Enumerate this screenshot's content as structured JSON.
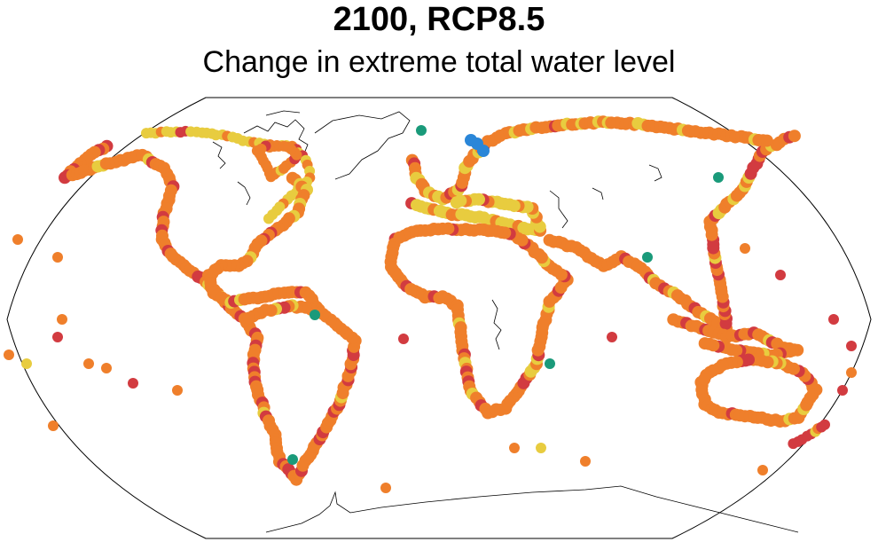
{
  "title": "2100, RCP8.5",
  "subtitle": "Change in extreme total water level",
  "map": {
    "projection": "robinson",
    "point_colors": {
      "yellow": "#e8cc3f",
      "orange": "#ef7f2b",
      "red": "#d23b40",
      "green": "#1a9a7a",
      "blue": "#2a86d8"
    },
    "coastline_color": "#000000",
    "ice_outline_color": "#000000"
  }
}
